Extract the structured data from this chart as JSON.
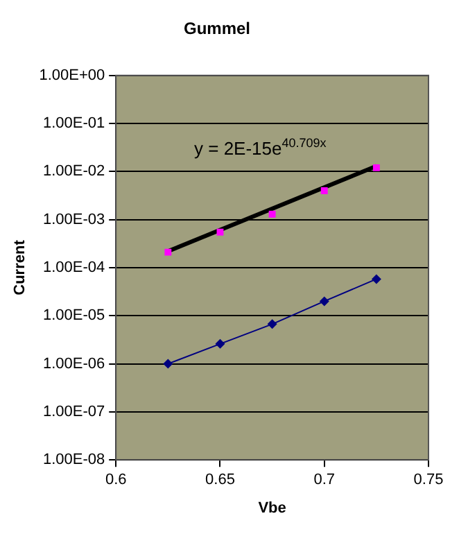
{
  "chart_data": {
    "type": "scatter",
    "title": "Gummel",
    "xlabel": "Vbe",
    "ylabel": "Current",
    "xlim": [
      0.6,
      0.75
    ],
    "xticks": [
      0.6,
      0.65,
      0.7,
      0.75
    ],
    "ylim": [
      1e-08,
      1
    ],
    "log": "y",
    "yticks": [
      {
        "value": 1e-08,
        "label": "1.00E-08"
      },
      {
        "value": 1e-07,
        "label": "1.00E-07"
      },
      {
        "value": 1e-06,
        "label": "1.00E-06"
      },
      {
        "value": 1e-05,
        "label": "1.00E-05"
      },
      {
        "value": 0.0001,
        "label": "1.00E-04"
      },
      {
        "value": 0.001,
        "label": "1.00E-03"
      },
      {
        "value": 0.01,
        "label": "1.00E-02"
      },
      {
        "value": 0.1,
        "label": "1.00E-01"
      },
      {
        "value": 1,
        "label": "1.00E+00"
      }
    ],
    "grid": "y",
    "series": [
      {
        "type": "line",
        "color": "#000080",
        "marker": "diamond",
        "x": [
          0.625,
          0.65,
          0.675,
          0.7,
          0.725
        ],
        "values": [
          1e-06,
          2.6e-06,
          6.7e-06,
          2e-05,
          5.8e-05
        ]
      },
      {
        "color": "#ff00ff",
        "marker": "square",
        "x": [
          0.625,
          0.65,
          0.675,
          0.7,
          0.725
        ],
        "values": [
          0.00021,
          0.00055,
          0.0013,
          0.004,
          0.012
        ]
      },
      {
        "type": "line",
        "color": "#000000",
        "marker": "none",
        "x": [
          0.625,
          0.725
        ],
        "values": [
          0.00022,
          0.013
        ]
      }
    ],
    "annotations": [
      "y = 2E-15e$^{40.709x}$"
    ]
  }
}
